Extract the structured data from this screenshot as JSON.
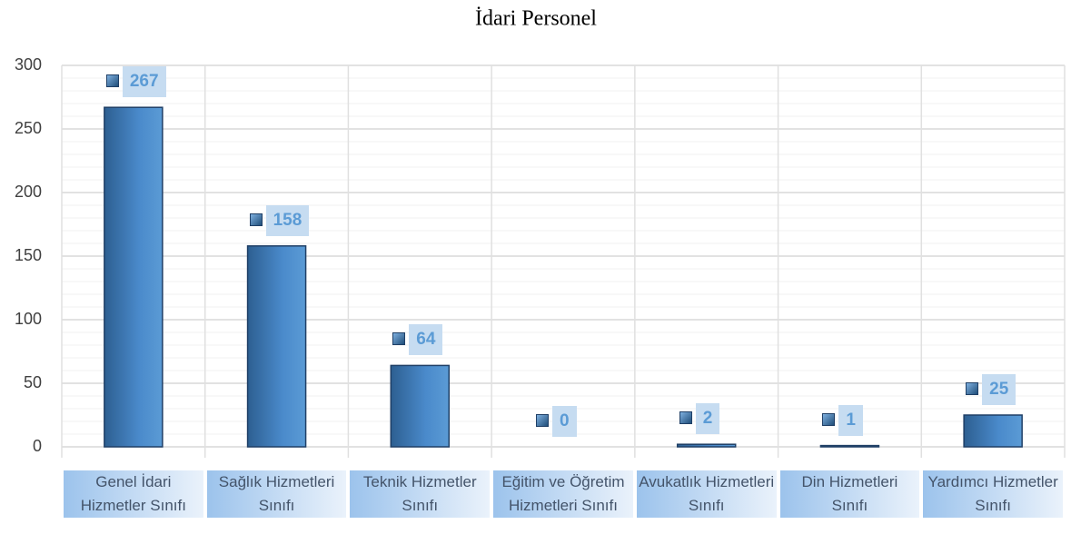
{
  "chart_data": {
    "type": "bar",
    "title": "İdari Personel",
    "categories": [
      "Genel İdari Hizmetler Sınıfı",
      "Sağlık Hizmetleri Sınıfı",
      "Teknik Hizmetler Sınıfı",
      "Eğitim ve Öğretim Hizmetleri Sınıfı",
      "Avukatlık Hizmetleri Sınıfı",
      "Din Hizmetleri Sınıfı",
      "Yardımcı Hizmetler Sınıfı"
    ],
    "values": [
      267,
      158,
      64,
      0,
      2,
      1,
      25
    ],
    "color": "#4a86c5",
    "ylim": [
      0,
      300
    ],
    "yticks": [
      0,
      50,
      100,
      150,
      200,
      250,
      300
    ],
    "grid": true
  }
}
